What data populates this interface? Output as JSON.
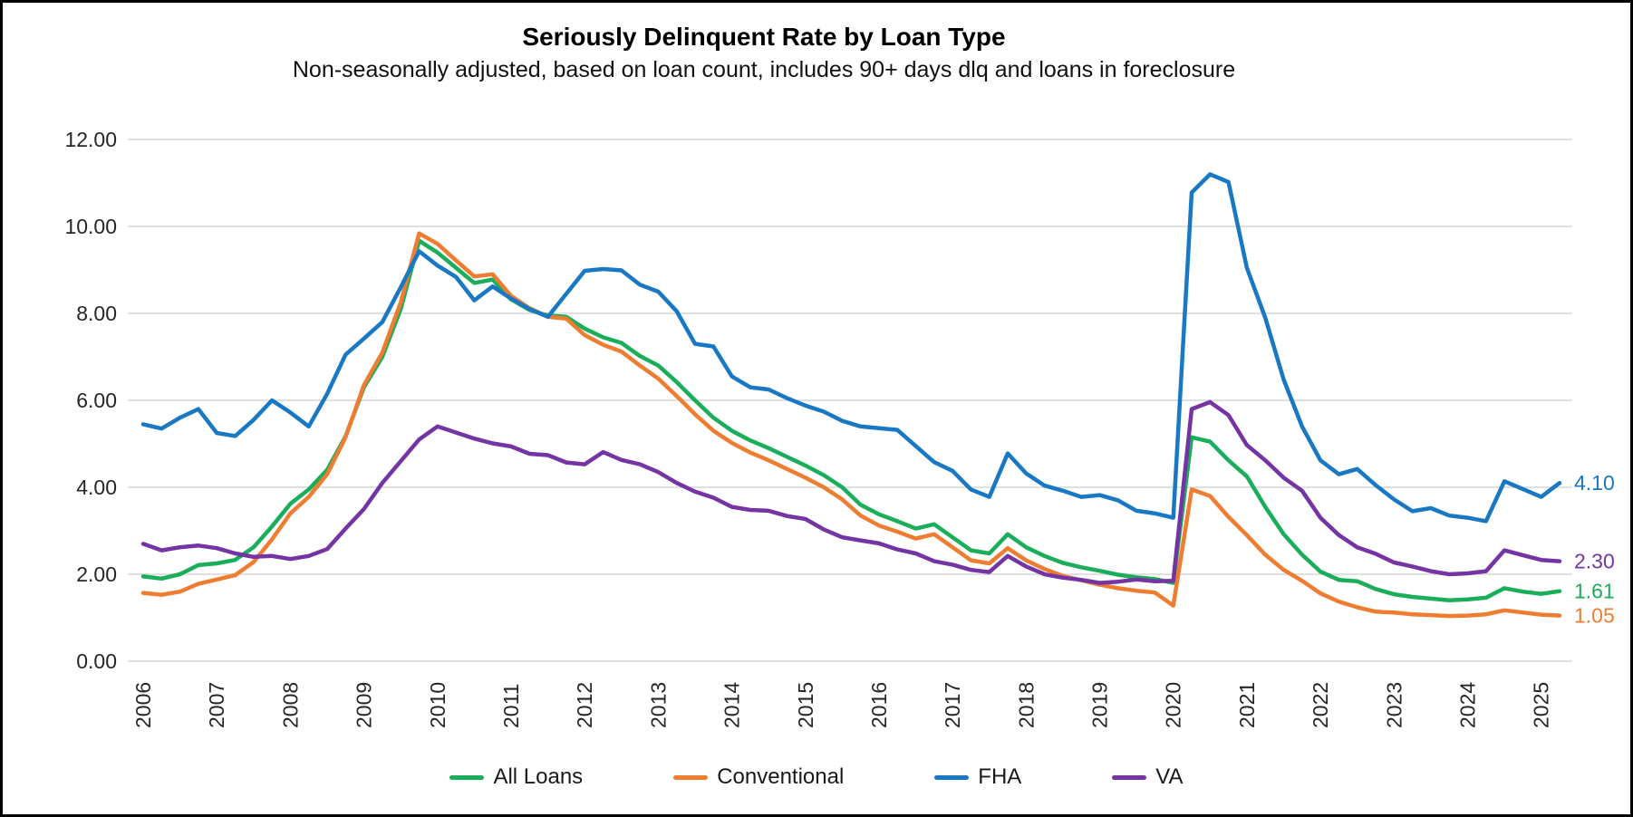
{
  "title": "Seriously Delinquent Rate by Loan Type",
  "subtitle": "Non-seasonally adjusted, based on loan count, includes 90+ days dlq and loans in foreclosure",
  "chart_data": {
    "type": "line",
    "frequency": "quarterly",
    "x_start": "2006 Q1",
    "x_end": "2025 Q2",
    "grid": "horizontal",
    "legend_position": "bottom",
    "ylim": [
      0,
      12
    ],
    "y_ticks": [
      "12.00",
      "10.00",
      "8.00",
      "6.00",
      "4.00",
      "2.00",
      "0.00"
    ],
    "x_labels": [
      "2006",
      "2007",
      "2008",
      "2009",
      "2010",
      "2011",
      "2012",
      "2013",
      "2014",
      "2015",
      "2016",
      "2017",
      "2018",
      "2019",
      "2020",
      "2021",
      "2022",
      "2023",
      "2024",
      "2025"
    ],
    "gridline_color": "#d6d6d6",
    "series": [
      {
        "name": "All Loans",
        "color": "#1aad5a",
        "end_label": "1.61",
        "values": [
          1.95,
          1.9,
          2.0,
          2.21,
          2.25,
          2.33,
          2.62,
          3.1,
          3.62,
          3.95,
          4.4,
          5.17,
          6.3,
          7.0,
          8.1,
          9.67,
          9.4,
          9.05,
          8.7,
          8.78,
          8.32,
          8.08,
          7.95,
          7.92,
          7.65,
          7.45,
          7.32,
          7.02,
          6.8,
          6.42,
          6.0,
          5.6,
          5.3,
          5.08,
          4.9,
          4.7,
          4.5,
          4.28,
          4.0,
          3.6,
          3.38,
          3.22,
          3.05,
          3.15,
          2.85,
          2.55,
          2.48,
          2.92,
          2.62,
          2.42,
          2.26,
          2.16,
          2.08,
          1.99,
          1.93,
          1.89,
          1.8,
          5.15,
          5.05,
          4.62,
          4.25,
          3.55,
          2.92,
          2.45,
          2.06,
          1.87,
          1.84,
          1.66,
          1.54,
          1.48,
          1.44,
          1.4,
          1.42,
          1.46,
          1.68,
          1.6,
          1.55,
          1.61
        ]
      },
      {
        "name": "Conventional",
        "color": "#ee7d31",
        "end_label": "1.05",
        "values": [
          1.57,
          1.53,
          1.6,
          1.78,
          1.88,
          1.98,
          2.28,
          2.8,
          3.4,
          3.78,
          4.3,
          5.15,
          6.35,
          7.1,
          8.25,
          9.84,
          9.6,
          9.22,
          8.85,
          8.9,
          8.4,
          8.12,
          7.92,
          7.88,
          7.5,
          7.28,
          7.12,
          6.8,
          6.5,
          6.1,
          5.68,
          5.3,
          5.02,
          4.8,
          4.62,
          4.42,
          4.22,
          4.0,
          3.72,
          3.35,
          3.12,
          2.98,
          2.82,
          2.92,
          2.62,
          2.32,
          2.25,
          2.6,
          2.32,
          2.12,
          1.96,
          1.86,
          1.76,
          1.68,
          1.62,
          1.58,
          1.28,
          3.95,
          3.8,
          3.32,
          2.9,
          2.45,
          2.1,
          1.85,
          1.56,
          1.37,
          1.24,
          1.14,
          1.12,
          1.08,
          1.06,
          1.04,
          1.05,
          1.08,
          1.17,
          1.12,
          1.07,
          1.05
        ]
      },
      {
        "name": "FHA",
        "color": "#1878c4",
        "end_label": "4.10",
        "values": [
          5.45,
          5.35,
          5.6,
          5.8,
          5.25,
          5.18,
          5.55,
          6.0,
          5.72,
          5.4,
          6.15,
          7.05,
          7.42,
          7.8,
          8.6,
          9.43,
          9.1,
          8.84,
          8.3,
          8.62,
          8.34,
          8.1,
          7.92,
          8.45,
          8.98,
          9.02,
          8.99,
          8.66,
          8.5,
          8.05,
          7.3,
          7.24,
          6.55,
          6.3,
          6.25,
          6.05,
          5.88,
          5.74,
          5.53,
          5.4,
          5.36,
          5.32,
          4.95,
          4.58,
          4.38,
          3.95,
          3.78,
          4.78,
          4.32,
          4.04,
          3.92,
          3.78,
          3.82,
          3.7,
          3.46,
          3.4,
          3.3,
          10.78,
          11.2,
          11.02,
          9.05,
          7.9,
          6.48,
          5.4,
          4.62,
          4.3,
          4.42,
          4.05,
          3.72,
          3.45,
          3.52,
          3.35,
          3.3,
          3.22,
          4.14,
          3.96,
          3.78,
          4.1
        ]
      },
      {
        "name": "VA",
        "color": "#7434a4",
        "end_label": "2.30",
        "values": [
          2.7,
          2.55,
          2.62,
          2.66,
          2.6,
          2.48,
          2.4,
          2.42,
          2.35,
          2.42,
          2.58,
          3.05,
          3.5,
          4.1,
          4.6,
          5.1,
          5.4,
          5.26,
          5.12,
          5.01,
          4.94,
          4.77,
          4.74,
          4.57,
          4.53,
          4.81,
          4.63,
          4.53,
          4.35,
          4.1,
          3.9,
          3.76,
          3.55,
          3.48,
          3.46,
          3.34,
          3.27,
          3.03,
          2.85,
          2.78,
          2.71,
          2.57,
          2.48,
          2.3,
          2.22,
          2.1,
          2.05,
          2.42,
          2.18,
          2.0,
          1.92,
          1.87,
          1.8,
          1.83,
          1.88,
          1.84,
          1.85,
          5.8,
          5.96,
          5.66,
          4.97,
          4.62,
          4.22,
          3.92,
          3.3,
          2.9,
          2.62,
          2.47,
          2.27,
          2.18,
          2.07,
          2.0,
          2.02,
          2.07,
          2.55,
          2.44,
          2.33,
          2.3
        ]
      }
    ]
  }
}
